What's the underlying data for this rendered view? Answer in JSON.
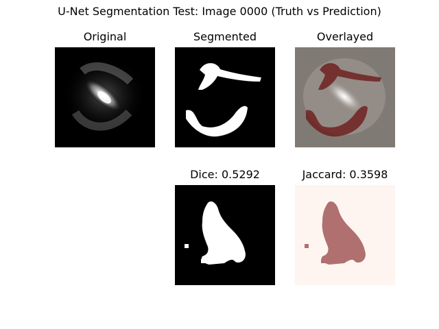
{
  "figure": {
    "title": "U-Net Segmentation Test: Image 0000 (Truth vs Prediction)"
  },
  "panels": {
    "original": {
      "title": "Original"
    },
    "segmented": {
      "title": "Segmented"
    },
    "overlayed": {
      "title": "Overlayed"
    },
    "dice": {
      "title": "Dice: 0.5292",
      "metric": "Dice",
      "value": 0.5292
    },
    "jaccard": {
      "title": "Jaccard: 0.3598",
      "metric": "Jaccard",
      "value": 0.3598
    }
  },
  "colors": {
    "mask_white": "#ffffff",
    "mask_black": "#000000",
    "overlay_red": "#6b1a1a",
    "jaccard_bg": "#fff5f0",
    "jaccard_fg": "#b07070"
  }
}
